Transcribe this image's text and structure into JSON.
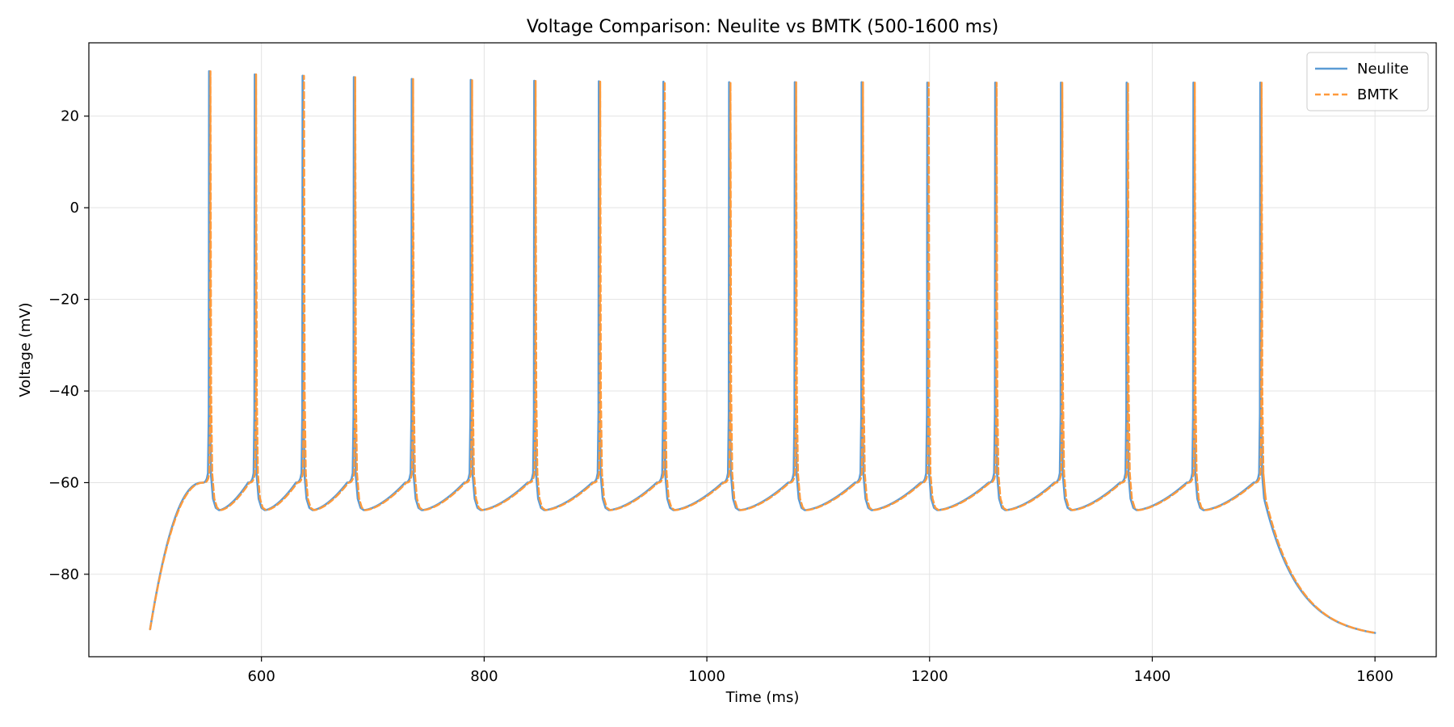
{
  "chart_data": {
    "type": "line",
    "title": "Voltage Comparison: Neulite vs BMTK (500-1600 ms)",
    "xlabel": "Time (ms)",
    "ylabel": "Voltage (mV)",
    "xlim": [
      445,
      1655
    ],
    "ylim": [
      -98,
      36
    ],
    "xticks": [
      600,
      800,
      1000,
      1200,
      1400,
      1600
    ],
    "yticks": [
      -80,
      -60,
      -40,
      -20,
      0,
      20
    ],
    "grid": true,
    "legend_position": "top-right",
    "spike_times_ms": [
      553,
      594,
      637,
      683,
      735,
      788,
      845,
      903,
      961,
      1020,
      1079,
      1139,
      1198,
      1259,
      1318,
      1377,
      1437,
      1497
    ],
    "spike_peaks_mv": [
      29.8,
      29.1,
      28.8,
      28.5,
      28.1,
      27.9,
      27.7,
      27.6,
      27.5,
      27.4,
      27.4,
      27.4,
      27.3,
      27.3,
      27.3,
      27.3,
      27.3,
      27.3
    ],
    "trough_mv": -66.0,
    "pre_spike_threshold_mv": -57.0,
    "start": {
      "t": 500,
      "v": -92.0
    },
    "end": {
      "t": 1600,
      "v": -92.8
    },
    "series": [
      {
        "name": "Neulite",
        "color": "#5b9bd5",
        "style": "solid",
        "time_offset_ms": 0
      },
      {
        "name": "BMTK",
        "color": "#ff9a3c",
        "style": "dashed",
        "time_offset_ms": 1.2
      }
    ]
  }
}
